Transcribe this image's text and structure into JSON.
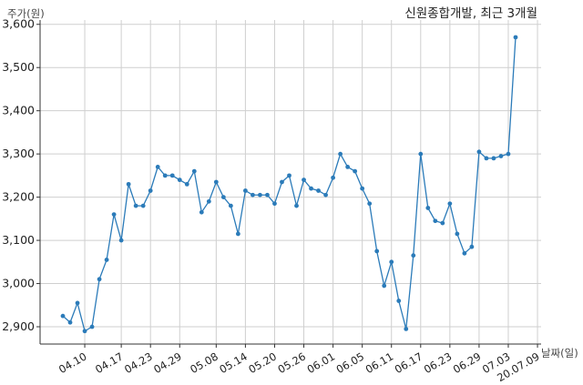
{
  "chart_data": {
    "type": "line",
    "title": "신원종합개발, 최근 3개월",
    "xlabel": "날짜(일)",
    "ylabel": "주가(원)",
    "ylim": [
      2860,
      3610
    ],
    "yticks": [
      2900,
      3000,
      3100,
      3200,
      3300,
      3400,
      3500,
      3600
    ],
    "ytick_labels": [
      "2,900",
      "3,000",
      "3,100",
      "3,200",
      "3,300",
      "3,400",
      "3,500",
      "3,600"
    ],
    "xtick_labels": [
      "04.10",
      "04.17",
      "04.23",
      "04.29",
      "05.08",
      "05.14",
      "05.20",
      "05.26",
      "06.01",
      "06.05",
      "06.11",
      "06.17",
      "06.23",
      "06.29",
      "07.03",
      "20.07.09"
    ],
    "xtick_index": [
      3,
      8,
      12,
      16,
      21,
      25,
      29,
      33,
      37,
      41,
      45,
      49,
      53,
      57,
      61,
      65
    ],
    "grid": true,
    "series": [
      {
        "color": "#2b7bb9",
        "values": [
          2925,
          2910,
          2955,
          2890,
          2900,
          3010,
          3055,
          3160,
          3100,
          3230,
          3180,
          3180,
          3215,
          3270,
          3250,
          3250,
          3240,
          3230,
          3260,
          3165,
          3190,
          3235,
          3200,
          3180,
          3115,
          3215,
          3205,
          3205,
          3205,
          3185,
          3235,
          3250,
          3180,
          3240,
          3220,
          3215,
          3205,
          3245,
          3300,
          3270,
          3260,
          3220,
          3185,
          3075,
          2995,
          3050,
          2960,
          2895,
          3065,
          3300,
          3175,
          3145,
          3140,
          3185,
          3115,
          3070,
          3085,
          3305,
          3290,
          3290,
          3295,
          3300,
          3570
        ]
      }
    ]
  }
}
